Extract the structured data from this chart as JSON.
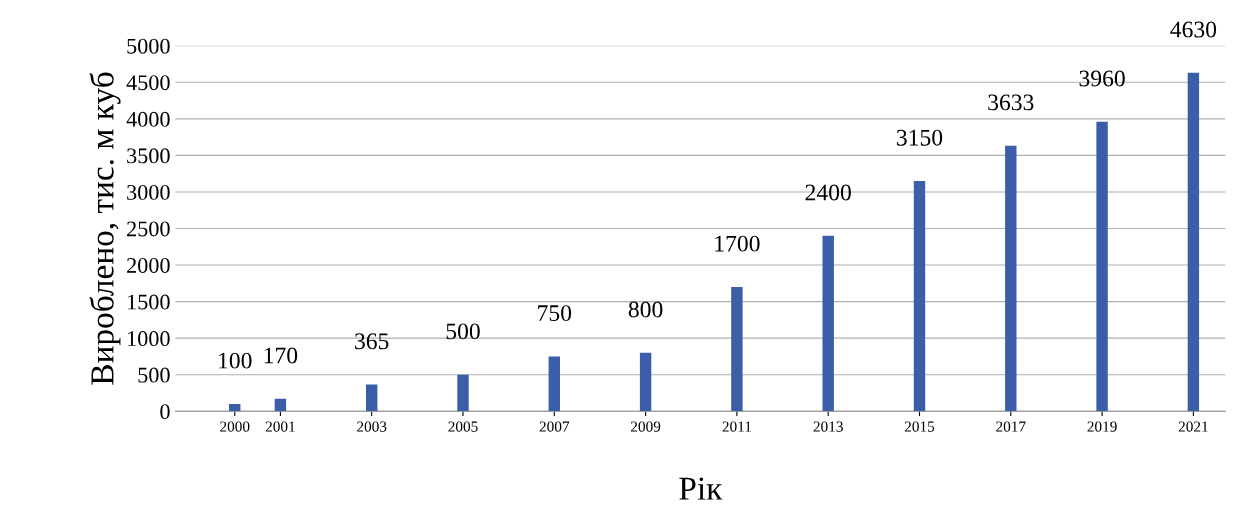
{
  "chart_data": {
    "type": "bar",
    "xlabel": "Рік",
    "ylabel": "Вироблено, тис. м куб",
    "x": [
      2000,
      2001,
      2003,
      2005,
      2007,
      2009,
      2011,
      2013,
      2015,
      2017,
      2019,
      2021
    ],
    "values": [
      100,
      170,
      365,
      500,
      750,
      800,
      1700,
      2400,
      3150,
      3633,
      3960,
      4630
    ],
    "color": "#3a5ea8",
    "data_labels": true,
    "xlim": [
      1998.7,
      2021.7
    ],
    "xticks": [
      2000,
      2001,
      2003,
      2005,
      2007,
      2009,
      2011,
      2013,
      2015,
      2017,
      2019,
      2021
    ],
    "ylim": [
      0,
      5000
    ],
    "yticks": [
      0,
      500,
      1000,
      1500,
      2000,
      2500,
      3000,
      3500,
      4000,
      4500,
      5000
    ],
    "grid": "y",
    "legend": false
  }
}
